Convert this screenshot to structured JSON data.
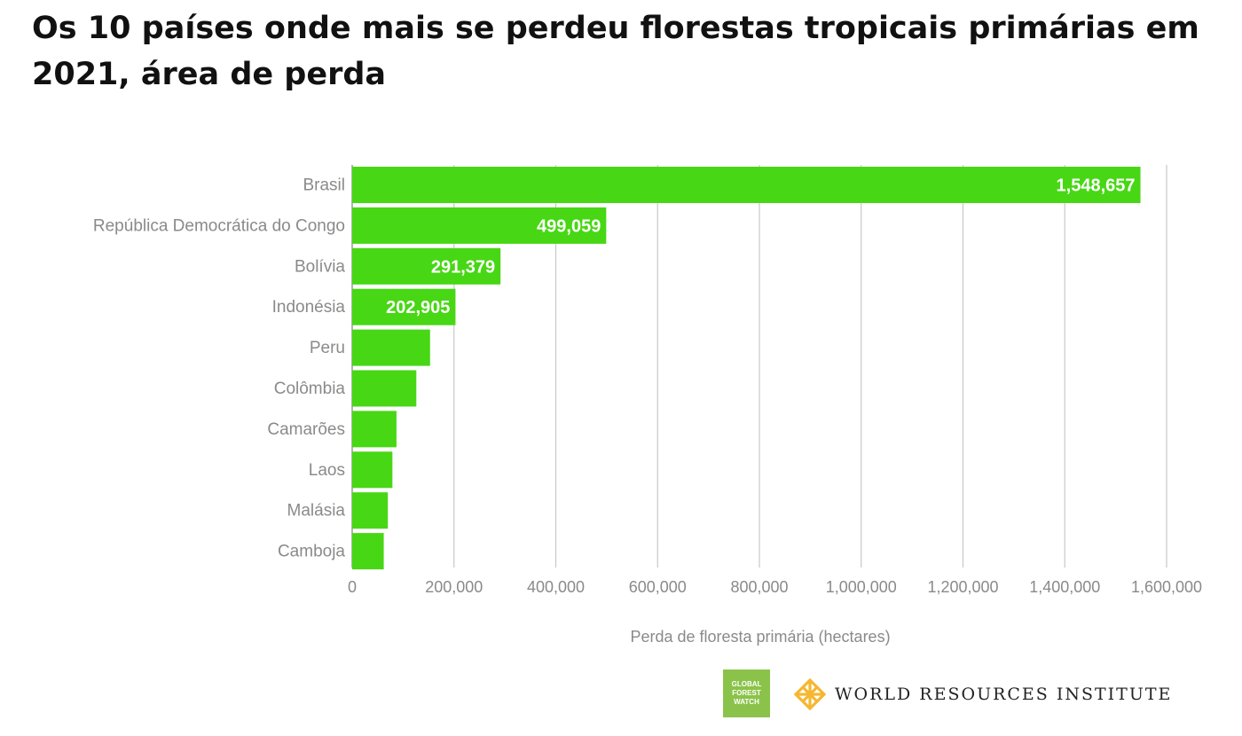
{
  "title": "Os 10 países onde mais se perdeu florestas tropicais primárias em 2021, área de perda",
  "chart_data": {
    "type": "bar",
    "orientation": "horizontal",
    "categories": [
      "Brasil",
      "República Democrática do Congo",
      "Bolívia",
      "Indonésia",
      "Peru",
      "Colômbia",
      "Camarões",
      "Laos",
      "Malásia",
      "Camboja"
    ],
    "values": [
      1548657,
      499059,
      291379,
      202905,
      153000,
      126000,
      87000,
      79000,
      70000,
      62000
    ],
    "data_labels": [
      "1,548,657",
      "499,059",
      "291,379",
      "202,905",
      "",
      "",
      "",
      "",
      "",
      ""
    ],
    "xlabel": "Perda de floresta primária (hectares)",
    "ylabel": "",
    "xlim": [
      0,
      1600000
    ],
    "x_ticks": [
      "0",
      "200,000",
      "400,000",
      "600,000",
      "800,000",
      "1,000,000",
      "1,200,000",
      "1,400,000",
      "1,600,000"
    ],
    "bar_color": "#47d714",
    "grid": "vertical",
    "legend": "none"
  },
  "footer": {
    "gfw_logo_lines": [
      "GLOBAL",
      "FOREST",
      "WATCH"
    ],
    "gfw_color": "#8bc34a",
    "wri_name": "WORLD RESOURCES INSTITUTE",
    "wri_icon": "wri-lattice-icon",
    "wri_color": "#f5b731"
  }
}
